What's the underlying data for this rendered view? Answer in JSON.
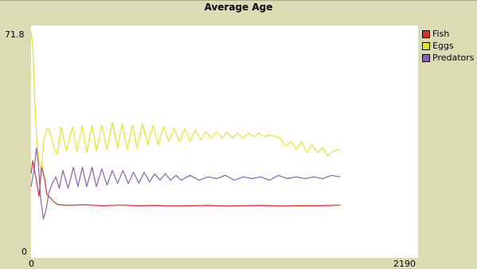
{
  "chart_data": {
    "type": "line",
    "title": "Average Age",
    "xlim": [
      0,
      2190
    ],
    "ylim": [
      0,
      71.8
    ],
    "x_ticks": [
      "0",
      "2190"
    ],
    "y_ticks": [
      "0",
      "71.8"
    ],
    "grid": false,
    "legend_position": "right",
    "series": [
      {
        "name": "Fish",
        "color": "#d73229",
        "x": [
          0,
          10,
          20,
          30,
          45,
          60,
          75,
          90,
          110,
          130,
          150,
          200,
          300,
          400,
          500,
          600,
          700,
          800,
          900,
          1000,
          1100,
          1200,
          1300,
          1400,
          1500,
          1600,
          1700,
          1750
        ],
        "y": [
          26,
          30,
          27,
          24,
          19,
          28,
          25,
          19.5,
          18.5,
          17.3,
          16.5,
          16.2,
          16.4,
          16.1,
          16.3,
          16.1,
          16.2,
          16.0,
          16.1,
          16.2,
          16.0,
          16.1,
          16.2,
          16.0,
          16.1,
          16.1,
          16.2,
          16.3
        ]
      },
      {
        "name": "Eggs",
        "color": "#e4e42b",
        "x": [
          0,
          10,
          20,
          30,
          45,
          60,
          70,
          90,
          105,
          130,
          150,
          170,
          200,
          235,
          260,
          290,
          315,
          345,
          370,
          400,
          430,
          460,
          490,
          515,
          545,
          575,
          600,
          630,
          660,
          690,
          720,
          750,
          780,
          810,
          840,
          870,
          900,
          930,
          960,
          990,
          1020,
          1050,
          1080,
          1110,
          1140,
          1170,
          1200,
          1230,
          1260,
          1290,
          1320,
          1350,
          1380,
          1410,
          1440,
          1470,
          1500,
          1530,
          1560,
          1590,
          1620,
          1650,
          1680,
          1710,
          1740,
          1750
        ],
        "y": [
          70,
          65,
          50,
          38,
          30,
          27,
          36,
          40,
          39.5,
          34,
          32,
          40.5,
          33,
          40.5,
          33,
          41,
          32.5,
          41,
          33,
          41,
          33.5,
          42,
          34,
          41.5,
          33.5,
          41,
          34,
          41.5,
          35,
          41,
          35,
          40.5,
          36,
          40,
          36,
          40,
          36,
          39.5,
          36.5,
          39,
          37,
          39,
          37,
          38.8,
          37,
          38.5,
          37,
          38.5,
          37.5,
          38.5,
          37.5,
          38,
          37.5,
          37,
          34.5,
          36,
          33.5,
          36,
          32.5,
          35,
          32.5,
          34,
          31.5,
          33,
          33.5,
          33.5
        ]
      },
      {
        "name": "Predators",
        "color": "#8a5eb9",
        "x": [
          0,
          10,
          20,
          30,
          40,
          55,
          70,
          85,
          100,
          120,
          140,
          160,
          180,
          210,
          240,
          265,
          290,
          315,
          345,
          370,
          400,
          430,
          460,
          490,
          520,
          550,
          580,
          610,
          640,
          670,
          700,
          730,
          760,
          790,
          820,
          850,
          900,
          950,
          1000,
          1050,
          1100,
          1150,
          1200,
          1250,
          1300,
          1350,
          1400,
          1450,
          1500,
          1550,
          1600,
          1650,
          1700,
          1750
        ],
        "y": [
          22,
          25,
          28,
          34,
          30,
          18,
          12,
          15,
          20,
          23,
          25,
          21.5,
          27,
          21.5,
          28,
          22,
          28,
          22,
          28,
          22,
          27.5,
          22.5,
          27,
          23,
          27,
          23,
          26.5,
          23,
          26.5,
          23.5,
          26,
          24,
          26,
          24,
          25.5,
          24,
          25.5,
          24,
          25,
          24.5,
          25.5,
          24,
          25,
          24.5,
          25,
          24,
          25.5,
          24.5,
          25,
          24.5,
          25,
          24.5,
          25.5,
          25
        ]
      }
    ]
  }
}
